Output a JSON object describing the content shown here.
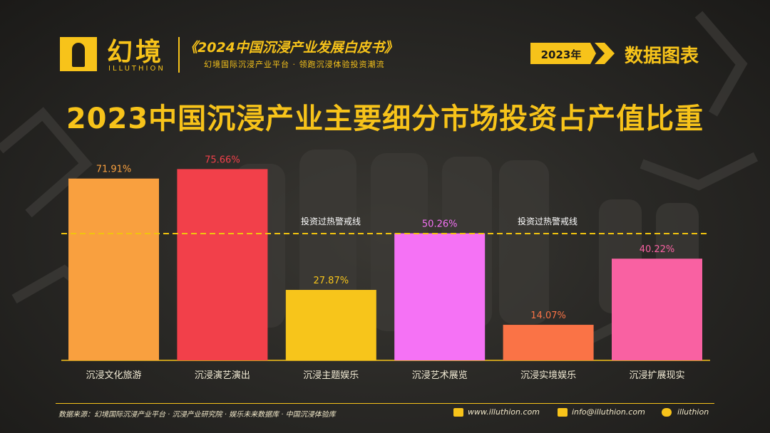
{
  "header": {
    "logo_name": "幻境",
    "logo_sub": "ILLUTHION",
    "report_title": "《2024中国沉浸产业发展白皮书》",
    "report_subtitle": "幻境国际沉浸产业平台 · 领跑沉浸体验投资潮流",
    "year_tag": "2023年",
    "section_label": "数据图表"
  },
  "colors": {
    "accent": "#f7c31a",
    "threshold_line": "#f1c40f"
  },
  "chart_data": {
    "type": "bar",
    "title": "2023中国沉浸产业主要细分市场投资占产值比重",
    "categories": [
      "沉浸文化旅游",
      "沉浸演艺演出",
      "沉浸主题娱乐",
      "沉浸艺术展览",
      "沉浸实境娱乐",
      "沉浸扩展现实"
    ],
    "values": [
      71.91,
      75.66,
      27.87,
      50.26,
      14.07,
      40.22
    ],
    "value_labels": [
      "71.91%",
      "75.66%",
      "27.87%",
      "50.26%",
      "14.07%",
      "40.22%"
    ],
    "bar_colors": [
      "#f9a03f",
      "#f2404a",
      "#f7c51b",
      "#f572f5",
      "#fa7346",
      "#f961a2"
    ],
    "label_colors": [
      "#f9a03f",
      "#f2404a",
      "#f7c51b",
      "#f572f5",
      "#fa7346",
      "#f961a2"
    ],
    "threshold": {
      "value": 50,
      "label": "投资过热警戒线"
    },
    "ylim": [
      0,
      80
    ],
    "grid": false,
    "legend": "none"
  },
  "footer": {
    "source": "数据来源：幻境国际沉浸产业平台 · 沉浸产业研究院 · 娱乐未来数据库 · 中国沉浸体验库",
    "website": "www.illuthion.com",
    "email": "info@illuthion.com",
    "wechat": "illuthion"
  }
}
